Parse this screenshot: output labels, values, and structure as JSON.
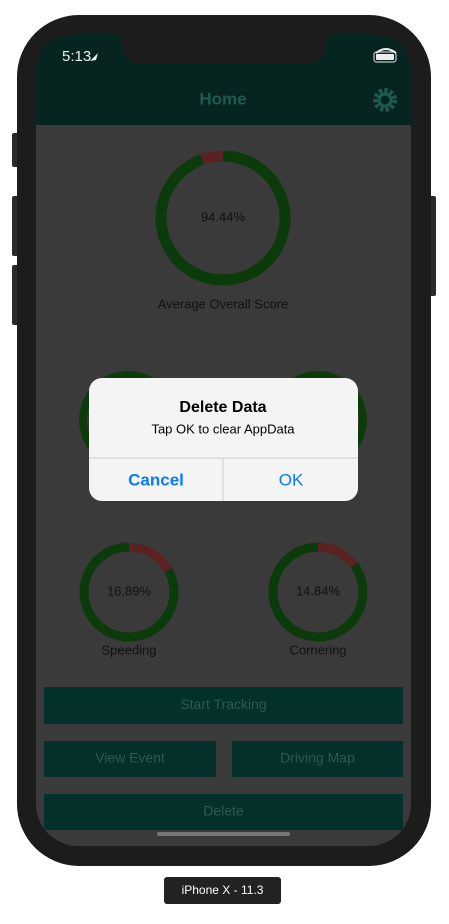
{
  "status": {
    "time": "5:13"
  },
  "nav": {
    "title": "Home"
  },
  "gauges": [
    {
      "value": 94.44,
      "value_label": "94.44%",
      "label": "Average Overall Score",
      "value_color": "#0b3a0b",
      "rest_color": "#5a2222"
    },
    {
      "value": 16.89,
      "value_label": "16.89%",
      "label": "Speeding",
      "value_color": "#5a2222",
      "rest_color": "#0b3a0b"
    },
    {
      "value": 14.84,
      "value_label": "14.84%",
      "label": "Cornering",
      "value_color": "#5a2222",
      "rest_color": "#0b3a0b"
    }
  ],
  "buttons": [
    "Start Tracking",
    "View Event",
    "Driving Map",
    "Delete"
  ],
  "dialog": {
    "title": "Delete Data",
    "message": "Tap OK to clear AppData",
    "cancel": "Cancel",
    "ok": "OK"
  },
  "device_label": "iPhone X - 11.3"
}
